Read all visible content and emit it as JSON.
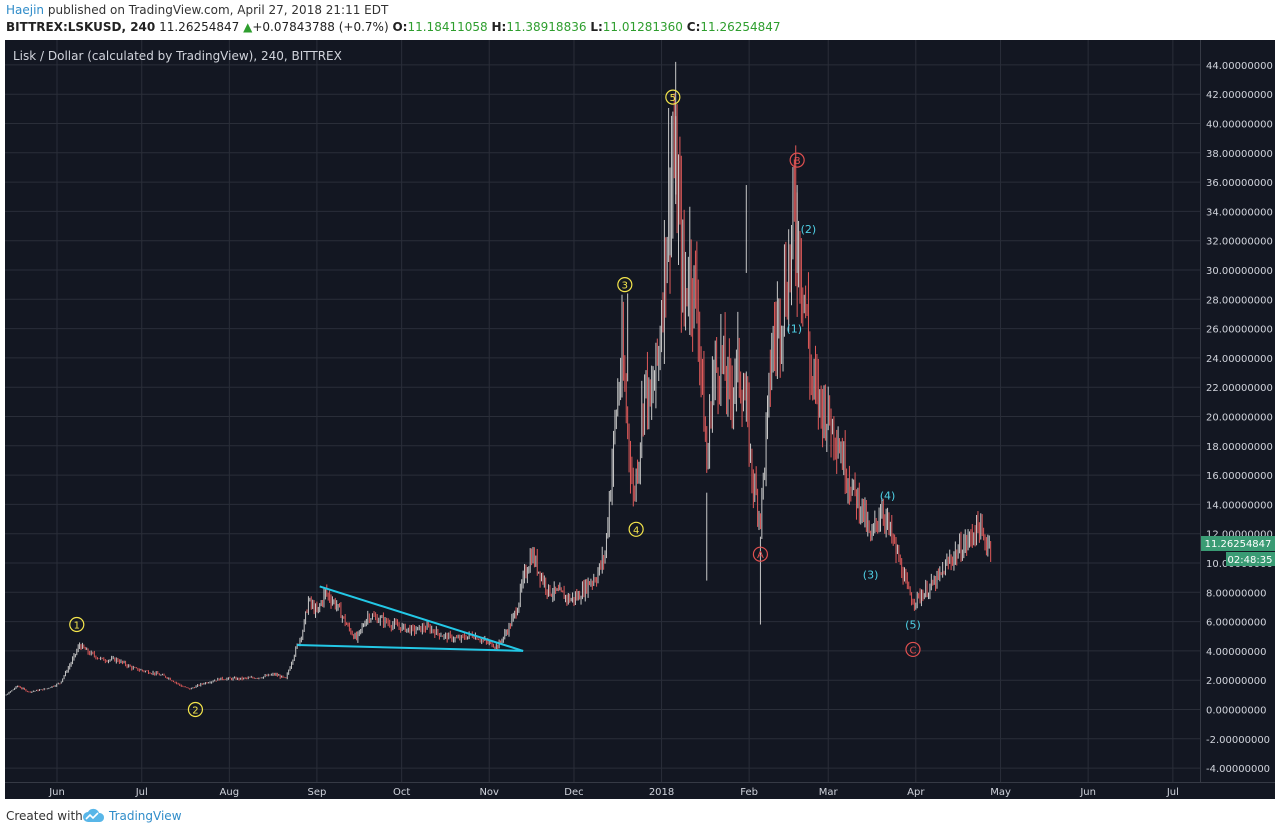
{
  "header": {
    "author": "Haejin",
    "published": " published on TradingView.com, April 27, 2018 21:11 EDT",
    "symbol": "BITTREX:LSKUSD, 240",
    "last": "11.26254847",
    "arrow": "▲",
    "change": "+0.07843788 (+0.7%)",
    "o_label": "O:",
    "o_value": "11.18411058",
    "h_label": "H:",
    "h_value": "11.38918836",
    "l_label": "L:",
    "l_value": "11.01281360",
    "c_label": "C:",
    "c_value": "11.26254847"
  },
  "footer": {
    "created_with": "Created with",
    "brand": "TradingView",
    "logo_icon": "tradingview-cloud-icon"
  },
  "price_badge": {
    "price": "11.26254847",
    "countdown": "02:48:35"
  },
  "colors": {
    "background": "#131722",
    "grid": "#2a2e39",
    "axis_text": "#d1d4dc",
    "candle_up": "#c8c8c8",
    "candle_down": "#e05a5a",
    "wave_yellow": "#f5e64c",
    "wave_red": "#e05050",
    "wave_cyan": "#4fd0e5",
    "trendline": "#23c8e6",
    "badge": "#3a9b74"
  },
  "chart_data": {
    "type": "line",
    "title": "Lisk / Dollar (calculated by TradingView), 240, BITTREX",
    "xlabel": "",
    "ylabel": "",
    "x_ticks": [
      "Jun",
      "Jul",
      "Aug",
      "Sep",
      "Oct",
      "Nov",
      "Dec",
      "2018",
      "Feb",
      "Mar",
      "Apr",
      "May",
      "Jun",
      "Jul"
    ],
    "y_ticks": [
      "-4.00000000",
      "-2.00000000",
      "0.00000000",
      "2.00000000",
      "4.00000000",
      "6.00000000",
      "8.00000000",
      "10.00000000",
      "12.00000000",
      "14.00000000",
      "16.00000000",
      "18.00000000",
      "20.00000000",
      "22.00000000",
      "24.00000000",
      "26.00000000",
      "28.00000000",
      "30.00000000",
      "32.00000000",
      "34.00000000",
      "36.00000000",
      "38.00000000",
      "40.00000000",
      "42.00000000",
      "44.00000000"
    ],
    "ylim": [
      -5,
      45.5
    ],
    "grid": true,
    "price_series": {
      "name": "",
      "points": [
        [
          "2017-05-07",
          0.6
        ],
        [
          "2017-05-14",
          1.0
        ],
        [
          "2017-05-18",
          1.6
        ],
        [
          "2017-05-22",
          1.2
        ],
        [
          "2017-05-28",
          1.4
        ],
        [
          "2017-06-02",
          1.8
        ],
        [
          "2017-06-06",
          3.2
        ],
        [
          "2017-06-09",
          4.4
        ],
        [
          "2017-06-12",
          3.9
        ],
        [
          "2017-06-17",
          3.4
        ],
        [
          "2017-06-22",
          3.4
        ],
        [
          "2017-06-28",
          2.8
        ],
        [
          "2017-07-05",
          2.5
        ],
        [
          "2017-07-10",
          2.2
        ],
        [
          "2017-07-15",
          1.6
        ],
        [
          "2017-07-18",
          1.4
        ],
        [
          "2017-07-23",
          1.8
        ],
        [
          "2017-07-29",
          2.1
        ],
        [
          "2017-08-05",
          2.1
        ],
        [
          "2017-08-12",
          2.2
        ],
        [
          "2017-08-17",
          2.4
        ],
        [
          "2017-08-21",
          2.1
        ],
        [
          "2017-08-24",
          3.8
        ],
        [
          "2017-08-27",
          5.4
        ],
        [
          "2017-08-29",
          7.4
        ],
        [
          "2017-09-01",
          6.6
        ],
        [
          "2017-09-04",
          8.0
        ],
        [
          "2017-09-08",
          7.1
        ],
        [
          "2017-09-12",
          5.6
        ],
        [
          "2017-09-15",
          4.8
        ],
        [
          "2017-09-19",
          6.4
        ],
        [
          "2017-09-24",
          6.1
        ],
        [
          "2017-09-29",
          5.7
        ],
        [
          "2017-10-05",
          5.4
        ],
        [
          "2017-10-10",
          5.6
        ],
        [
          "2017-10-16",
          5.0
        ],
        [
          "2017-10-21",
          4.8
        ],
        [
          "2017-10-26",
          5.1
        ],
        [
          "2017-10-31",
          4.6
        ],
        [
          "2017-11-04",
          4.3
        ],
        [
          "2017-11-08",
          5.6
        ],
        [
          "2017-11-11",
          7.0
        ],
        [
          "2017-11-13",
          8.8
        ],
        [
          "2017-11-16",
          10.6
        ],
        [
          "2017-11-19",
          9.3
        ],
        [
          "2017-11-22",
          8.1
        ],
        [
          "2017-11-26",
          7.9
        ],
        [
          "2017-11-30",
          7.5
        ],
        [
          "2017-12-03",
          7.8
        ],
        [
          "2017-12-06",
          8.6
        ],
        [
          "2017-12-09",
          9.1
        ],
        [
          "2017-12-12",
          10.6
        ],
        [
          "2017-12-14",
          15.5
        ],
        [
          "2017-12-16",
          20.5
        ],
        [
          "2017-12-18",
          24.0
        ],
        [
          "2017-12-20",
          19.2
        ],
        [
          "2017-12-22",
          14.5
        ],
        [
          "2017-12-24",
          17.5
        ],
        [
          "2017-12-26",
          22.5
        ],
        [
          "2017-12-28",
          20.5
        ],
        [
          "2017-12-31",
          24.5
        ],
        [
          "2018-01-03",
          33.5
        ],
        [
          "2018-01-05",
          38.0
        ],
        [
          "2018-01-07",
          34.0
        ],
        [
          "2018-01-09",
          28.0
        ],
        [
          "2018-01-11",
          30.5
        ],
        [
          "2018-01-14",
          27.0
        ],
        [
          "2018-01-17",
          16.5
        ],
        [
          "2018-01-19",
          22.5
        ],
        [
          "2018-01-22",
          24.0
        ],
        [
          "2018-01-25",
          21.5
        ],
        [
          "2018-01-28",
          23.5
        ],
        [
          "2018-01-31",
          20.5
        ],
        [
          "2018-02-02",
          16.0
        ],
        [
          "2018-02-05",
          13.0
        ],
        [
          "2018-02-07",
          18.5
        ],
        [
          "2018-02-09",
          24.5
        ],
        [
          "2018-02-12",
          27.0
        ],
        [
          "2018-02-15",
          30.0
        ],
        [
          "2018-02-17",
          33.5
        ],
        [
          "2018-02-19",
          31.5
        ],
        [
          "2018-02-21",
          27.5
        ],
        [
          "2018-02-23",
          22.5
        ],
        [
          "2018-02-26",
          21.0
        ],
        [
          "2018-03-01",
          20.0
        ],
        [
          "2018-03-04",
          18.8
        ],
        [
          "2018-03-07",
          16.5
        ],
        [
          "2018-03-10",
          14.8
        ],
        [
          "2018-03-13",
          13.8
        ],
        [
          "2018-03-16",
          11.5
        ],
        [
          "2018-03-18",
          12.8
        ],
        [
          "2018-03-20",
          13.8
        ],
        [
          "2018-03-23",
          12.0
        ],
        [
          "2018-03-26",
          10.2
        ],
        [
          "2018-03-29",
          8.2
        ],
        [
          "2018-03-31",
          7.4
        ],
        [
          "2018-04-03",
          7.8
        ],
        [
          "2018-04-07",
          8.5
        ],
        [
          "2018-04-10",
          9.2
        ],
        [
          "2018-04-13",
          10.2
        ],
        [
          "2018-04-17",
          11.0
        ],
        [
          "2018-04-20",
          11.6
        ],
        [
          "2018-04-23",
          12.6
        ],
        [
          "2018-04-25",
          11.5
        ],
        [
          "2018-04-28",
          11.26
        ]
      ]
    },
    "annotations": [
      {
        "text": "1",
        "style": "yellow-circle",
        "date": "2017-06-08",
        "price": 5.8
      },
      {
        "text": "2",
        "style": "yellow-circle",
        "date": "2017-07-20",
        "price": 0.0
      },
      {
        "text": "3",
        "style": "yellow-circle",
        "date": "2017-12-19",
        "price": 29.0
      },
      {
        "text": "4",
        "style": "yellow-circle",
        "date": "2017-12-23",
        "price": 12.3
      },
      {
        "text": "5",
        "style": "yellow-circle",
        "date": "2018-01-05",
        "price": 41.8
      },
      {
        "text": "A",
        "style": "red-circle",
        "date": "2018-02-05",
        "price": 10.6
      },
      {
        "text": "B",
        "style": "red-circle",
        "date": "2018-02-18",
        "price": 37.5
      },
      {
        "text": "C",
        "style": "red-circle",
        "date": "2018-03-31",
        "price": 4.1
      },
      {
        "text": "(1)",
        "style": "cyan",
        "date": "2018-02-17",
        "price": 26.0
      },
      {
        "text": "(2)",
        "style": "cyan",
        "date": "2018-02-22",
        "price": 32.8
      },
      {
        "text": "(3)",
        "style": "cyan",
        "date": "2018-03-16",
        "price": 9.2
      },
      {
        "text": "(4)",
        "style": "cyan",
        "date": "2018-03-22",
        "price": 14.6
      },
      {
        "text": "(5)",
        "style": "cyan",
        "date": "2018-03-31",
        "price": 5.8
      }
    ],
    "trendlines": [
      {
        "from": {
          "date": "2017-09-02",
          "price": 8.4
        },
        "to": {
          "date": "2017-11-13",
          "price": 4.0
        }
      },
      {
        "from": {
          "date": "2017-08-25",
          "price": 4.4
        },
        "to": {
          "date": "2017-11-13",
          "price": 4.0
        }
      }
    ]
  }
}
